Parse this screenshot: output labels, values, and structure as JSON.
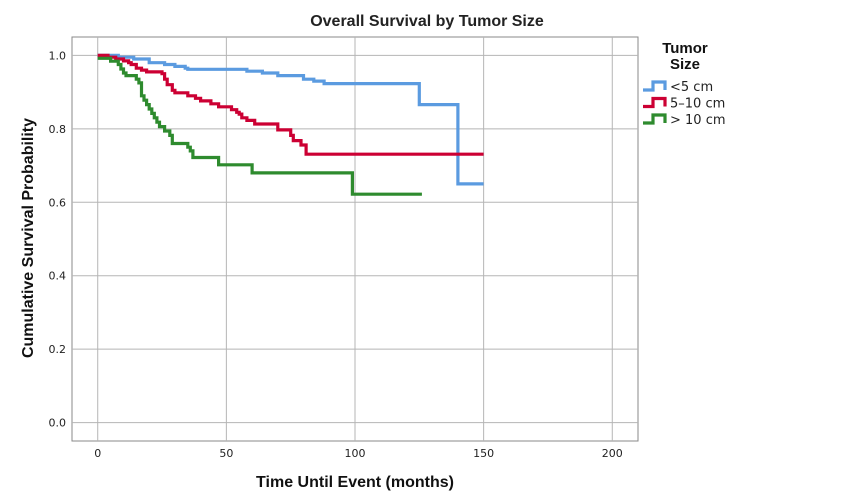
{
  "chart_data": {
    "type": "line",
    "title": "Overall Survival by Tumor Size",
    "xlabel": "Time Until Event (months)",
    "ylabel": "Cumulative Survival Probability",
    "xlim": [
      -10,
      210
    ],
    "ylim": [
      -0.05,
      1.05
    ],
    "xticks": [
      0,
      50,
      100,
      150,
      200
    ],
    "yticks": [
      0.0,
      0.2,
      0.4,
      0.6,
      0.8,
      1.0
    ],
    "xtick_labels": [
      "0",
      "50",
      "100",
      "150",
      "200"
    ],
    "ytick_labels": [
      "0.0",
      "0.2",
      "0.4",
      "0.6",
      "0.8",
      "1.0"
    ],
    "grid": true,
    "legend": {
      "title_line1": "Tumor",
      "title_line2": "Size",
      "placement": "top-right"
    },
    "series": [
      {
        "name": "<5 cm",
        "color": "#5b9be0",
        "steps": [
          [
            0,
            1.0
          ],
          [
            8,
            0.995
          ],
          [
            14,
            0.99
          ],
          [
            20,
            0.98
          ],
          [
            26,
            0.975
          ],
          [
            30,
            0.97
          ],
          [
            34,
            0.965
          ],
          [
            35,
            0.962
          ],
          [
            58,
            0.957
          ],
          [
            64,
            0.952
          ],
          [
            70,
            0.945
          ],
          [
            80,
            0.935
          ],
          [
            84,
            0.93
          ],
          [
            88,
            0.923
          ],
          [
            125,
            0.866
          ],
          [
            140,
            0.65
          ],
          [
            150,
            0.65
          ]
        ]
      },
      {
        "name": "5–10  cm",
        "color": "#cc0033",
        "steps": [
          [
            0,
            1.0
          ],
          [
            4,
            0.995
          ],
          [
            7,
            0.99
          ],
          [
            10,
            0.985
          ],
          [
            12,
            0.98
          ],
          [
            13,
            0.975
          ],
          [
            15,
            0.965
          ],
          [
            17,
            0.96
          ],
          [
            19,
            0.955
          ],
          [
            25,
            0.95
          ],
          [
            26,
            0.935
          ],
          [
            27,
            0.92
          ],
          [
            29,
            0.905
          ],
          [
            30,
            0.898
          ],
          [
            35,
            0.89
          ],
          [
            38,
            0.883
          ],
          [
            40,
            0.876
          ],
          [
            44,
            0.868
          ],
          [
            47,
            0.86
          ],
          [
            52,
            0.852
          ],
          [
            54,
            0.845
          ],
          [
            55,
            0.84
          ],
          [
            56,
            0.83
          ],
          [
            58,
            0.823
          ],
          [
            61,
            0.813
          ],
          [
            70,
            0.797
          ],
          [
            75,
            0.782
          ],
          [
            76,
            0.768
          ],
          [
            79,
            0.756
          ],
          [
            81,
            0.731
          ],
          [
            150,
            0.731
          ]
        ]
      },
      {
        "name": "> 10 cm",
        "color": "#2e8b2e",
        "steps": [
          [
            0,
            0.992
          ],
          [
            5,
            0.984
          ],
          [
            8,
            0.975
          ],
          [
            9,
            0.963
          ],
          [
            10,
            0.952
          ],
          [
            11,
            0.945
          ],
          [
            15,
            0.935
          ],
          [
            16,
            0.925
          ],
          [
            17,
            0.89
          ],
          [
            18,
            0.878
          ],
          [
            19,
            0.866
          ],
          [
            20,
            0.854
          ],
          [
            21,
            0.842
          ],
          [
            22,
            0.83
          ],
          [
            23,
            0.818
          ],
          [
            24,
            0.806
          ],
          [
            26,
            0.794
          ],
          [
            28,
            0.782
          ],
          [
            29,
            0.76
          ],
          [
            35,
            0.75
          ],
          [
            36,
            0.74
          ],
          [
            37,
            0.722
          ],
          [
            47,
            0.702
          ],
          [
            60,
            0.68
          ],
          [
            99,
            0.622
          ],
          [
            126,
            0.622
          ]
        ]
      }
    ]
  }
}
